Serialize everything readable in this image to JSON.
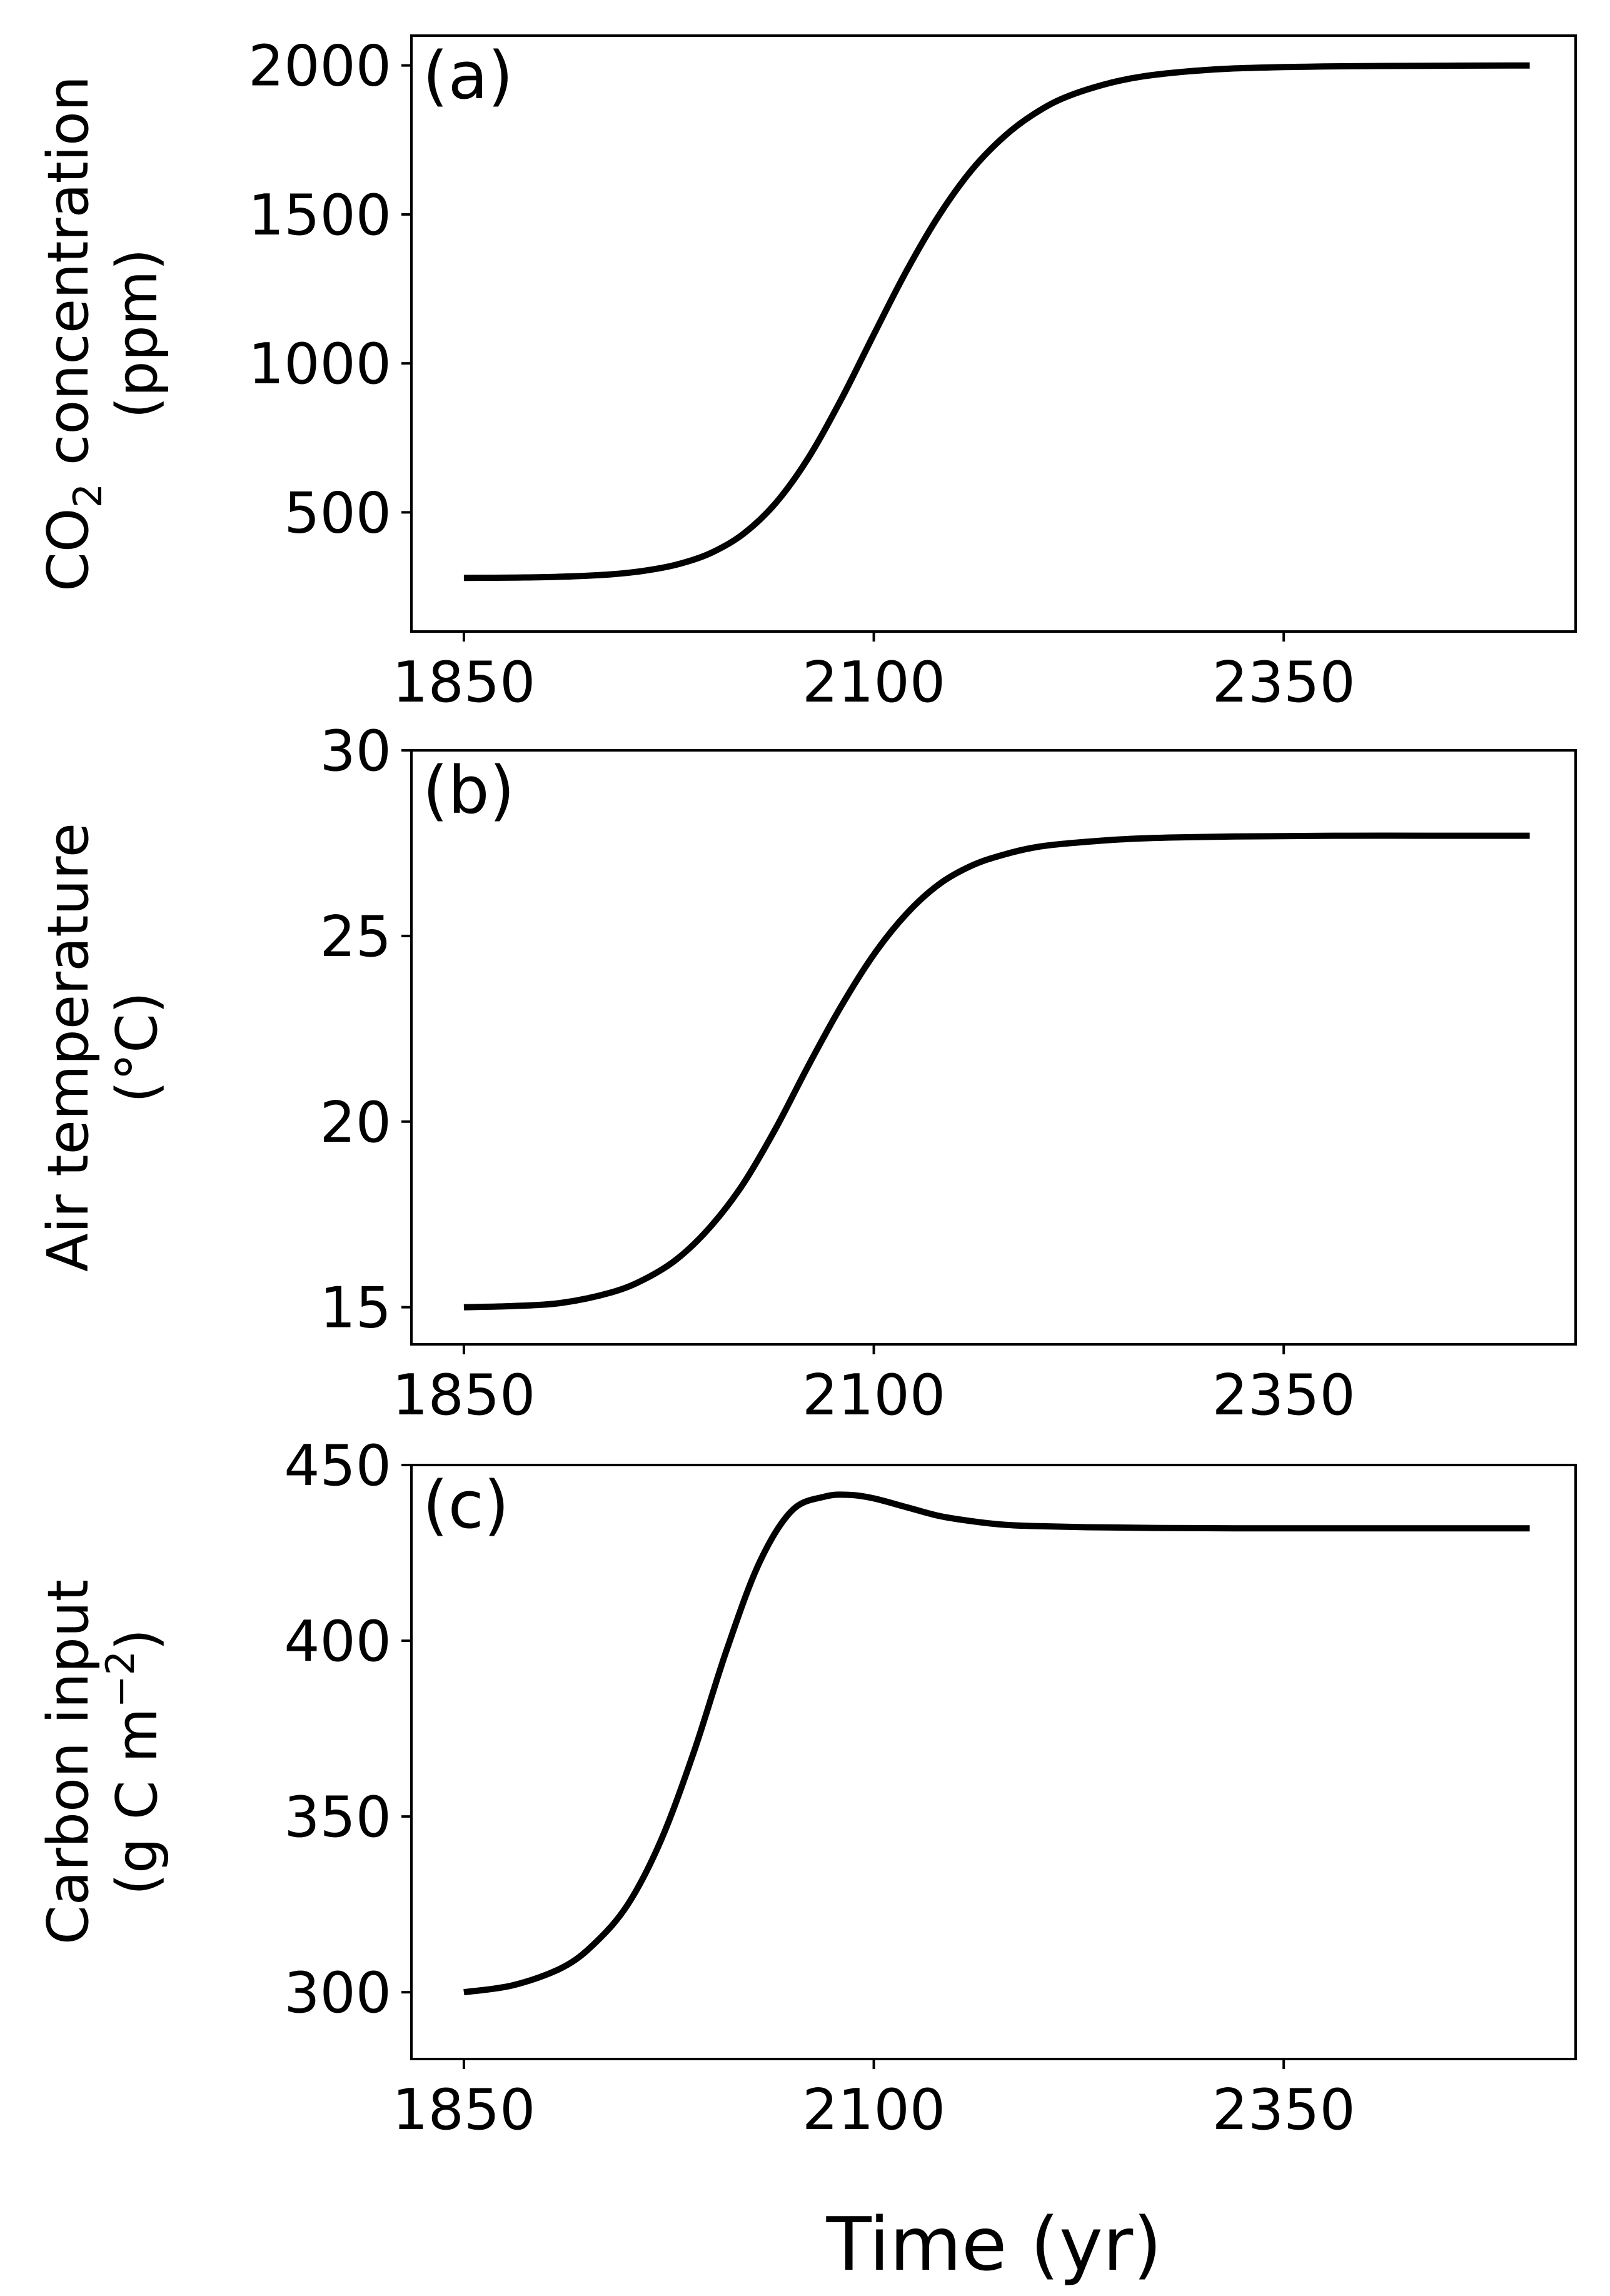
{
  "chart_data": [
    {
      "type": "line",
      "panel_label": "(a)",
      "ylabel_lines": [
        "CO",
        "2",
        " concentration",
        "(ppm)"
      ],
      "xticks": [
        1850,
        2100,
        2350
      ],
      "yticks": [
        500,
        1000,
        1500,
        2000
      ],
      "xlim": [
        1818,
        2528
      ],
      "ylim": [
        100,
        2100
      ],
      "grid": false,
      "line_color": "#000000",
      "series": [
        {
          "x": [
            1850,
            1880,
            1910,
            1940,
            1960,
            1980,
            2000,
            2020,
            2040,
            2060,
            2080,
            2100,
            2120,
            2140,
            2160,
            2180,
            2200,
            2220,
            2250,
            2280,
            2320,
            2380,
            2450,
            2500
          ],
          "values": [
            280,
            281,
            284,
            292,
            304,
            325,
            362,
            426,
            530,
            682,
            878,
            1097,
            1311,
            1499,
            1651,
            1764,
            1845,
            1900,
            1949,
            1974,
            1990,
            1997,
            1999,
            2000
          ]
        }
      ]
    },
    {
      "type": "line",
      "panel_label": "(b)",
      "ylabel_lines": [
        "Air temperature",
        "(°C)"
      ],
      "xticks": [
        1850,
        2100,
        2350
      ],
      "yticks": [
        15,
        20,
        25,
        30
      ],
      "xlim": [
        1818,
        2528
      ],
      "ylim": [
        14,
        30
      ],
      "grid": false,
      "line_color": "#000000",
      "series": [
        {
          "x": [
            1850,
            1880,
            1910,
            1940,
            1960,
            1980,
            2000,
            2020,
            2040,
            2060,
            2080,
            2100,
            2120,
            2140,
            2160,
            2180,
            2200,
            2220,
            2250,
            2280,
            2320,
            2380,
            2450,
            2500
          ],
          "values": [
            15.0,
            15.03,
            15.12,
            15.4,
            15.75,
            16.3,
            17.15,
            18.3,
            19.8,
            21.5,
            23.1,
            24.5,
            25.6,
            26.4,
            26.9,
            27.2,
            27.4,
            27.5,
            27.6,
            27.65,
            27.68,
            27.7,
            27.7,
            27.7
          ]
        }
      ]
    },
    {
      "type": "line",
      "panel_label": "(c)",
      "ylabel_lines": [
        "Carbon input",
        "(g C m",
        "−2",
        ")"
      ],
      "xticks": [
        1850,
        2100,
        2350
      ],
      "yticks": [
        300,
        350,
        400,
        450
      ],
      "xlim": [
        1818,
        2528
      ],
      "ylim": [
        281,
        450
      ],
      "grid": false,
      "line_color": "#000000",
      "series": [
        {
          "x": [
            1850,
            1880,
            1910,
            1930,
            1950,
            1970,
            1990,
            2010,
            2030,
            2050,
            2070,
            2085,
            2100,
            2120,
            2140,
            2160,
            2180,
            2200,
            2230,
            2270,
            2320,
            2400,
            2500
          ],
          "values": [
            300,
            302,
            307,
            314,
            325,
            343,
            368,
            397,
            422,
            437,
            441,
            441.5,
            440.5,
            438,
            435.5,
            434,
            433,
            432.6,
            432.3,
            432.1,
            432,
            432,
            432
          ]
        }
      ]
    }
  ],
  "xlabel": "Time (yr)"
}
